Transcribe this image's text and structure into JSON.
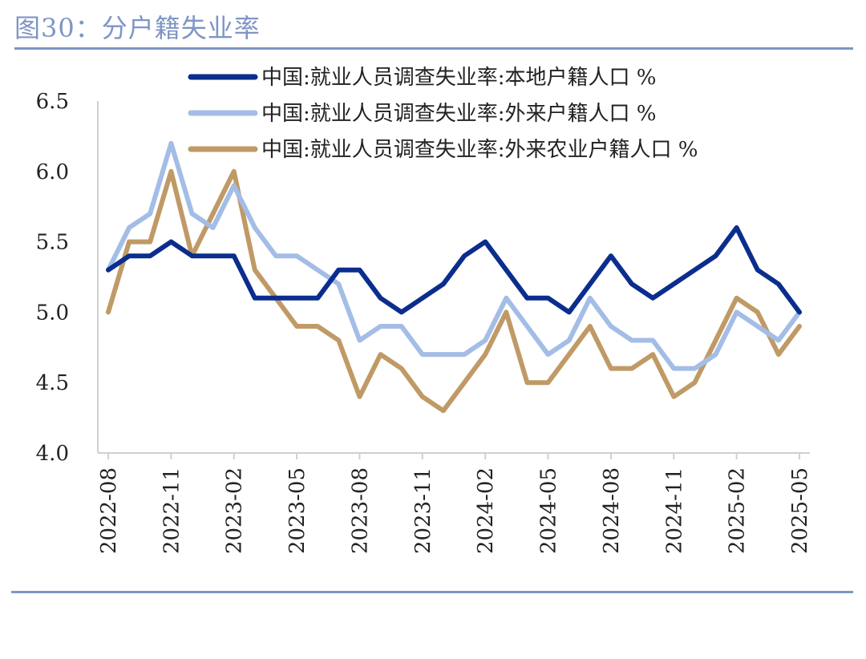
{
  "header": {
    "title": "图30：分户籍失业率"
  },
  "chart_data": {
    "type": "line",
    "title": "",
    "xlabel": "",
    "ylabel": "",
    "ylim": [
      4.0,
      6.5
    ],
    "yticks": [
      "4.0",
      "4.5",
      "5.0",
      "5.5",
      "6.0",
      "6.5"
    ],
    "x": [
      "2022-08",
      "2022-09",
      "2022-10",
      "2022-11",
      "2022-12",
      "2023-01",
      "2023-02",
      "2023-03",
      "2023-04",
      "2023-05",
      "2023-06",
      "2023-07",
      "2023-08",
      "2023-09",
      "2023-10",
      "2023-11",
      "2023-12",
      "2024-01",
      "2024-02",
      "2024-03",
      "2024-04",
      "2024-05",
      "2024-06",
      "2024-07",
      "2024-08",
      "2024-09",
      "2024-10",
      "2024-11",
      "2024-12",
      "2025-01",
      "2025-02",
      "2025-03",
      "2025-04",
      "2025-05"
    ],
    "xtick_labels": [
      "2022-08",
      "2022-11",
      "2023-02",
      "2023-05",
      "2023-08",
      "2023-11",
      "2024-02",
      "2024-05",
      "2024-08",
      "2024-11",
      "2025-02",
      "2025-05"
    ],
    "series": [
      {
        "name": "中国:就业人员调查失业率:本地户籍人口 %",
        "color": "#0b2d8e",
        "values": [
          5.3,
          5.4,
          5.4,
          5.5,
          5.4,
          5.4,
          5.4,
          5.1,
          5.1,
          5.1,
          5.1,
          5.3,
          5.3,
          5.1,
          5.0,
          5.1,
          5.2,
          5.4,
          5.5,
          5.3,
          5.1,
          5.1,
          5.0,
          5.2,
          5.4,
          5.2,
          5.1,
          5.2,
          5.3,
          5.4,
          5.6,
          5.3,
          5.2,
          5.0
        ]
      },
      {
        "name": "中国:就业人员调查失业率:外来户籍人口 %",
        "color": "#a3bde6",
        "values": [
          5.3,
          5.6,
          5.7,
          6.2,
          5.7,
          5.6,
          5.9,
          5.6,
          5.4,
          5.4,
          5.3,
          5.2,
          4.8,
          4.9,
          4.9,
          4.7,
          4.7,
          4.7,
          4.8,
          5.1,
          4.9,
          4.7,
          4.8,
          5.1,
          4.9,
          4.8,
          4.8,
          4.6,
          4.6,
          4.7,
          5.0,
          4.9,
          4.8,
          5.0
        ]
      },
      {
        "name": "中国:就业人员调查失业率:外来农业户籍人口 %",
        "color": "#c09a66",
        "values": [
          5.0,
          5.5,
          5.5,
          6.0,
          5.4,
          5.7,
          6.0,
          5.3,
          5.1,
          4.9,
          4.9,
          4.8,
          4.4,
          4.7,
          4.6,
          4.4,
          4.3,
          4.5,
          4.7,
          5.0,
          4.5,
          4.5,
          4.7,
          4.9,
          4.6,
          4.6,
          4.7,
          4.4,
          4.5,
          4.8,
          5.1,
          5.0,
          4.7,
          4.9
        ]
      }
    ],
    "legend_position": "top"
  }
}
